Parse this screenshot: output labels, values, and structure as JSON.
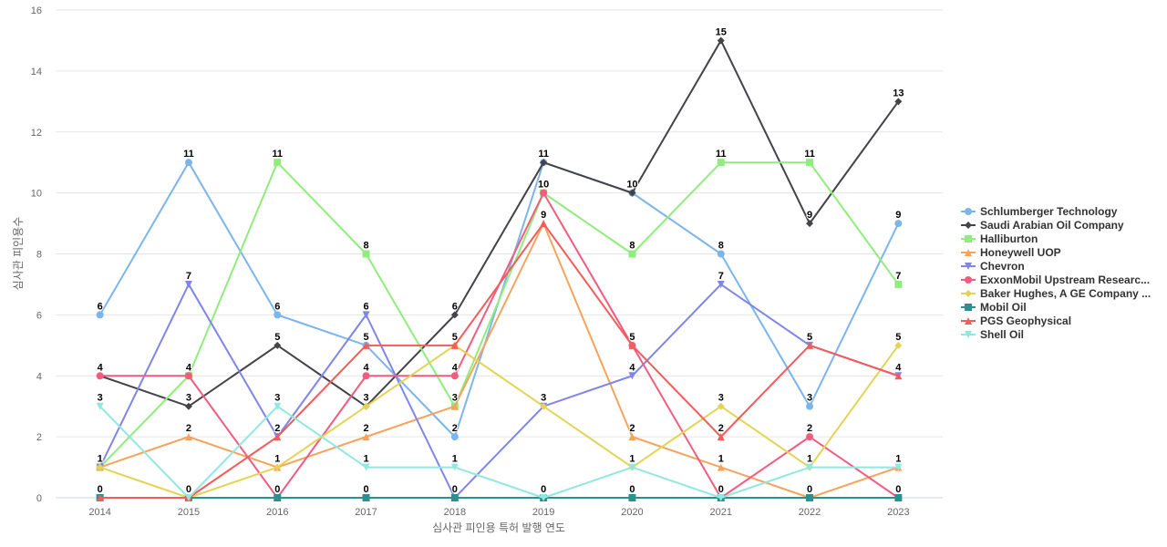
{
  "chart_data": {
    "type": "line",
    "xlabel": "심사관 피인용 특허 발행 연도",
    "ylabel": "심사관 피인용수",
    "x": [
      "2014",
      "2015",
      "2016",
      "2017",
      "2018",
      "2019",
      "2020",
      "2021",
      "2022",
      "2023"
    ],
    "ylim": [
      0,
      16
    ],
    "yticks": [
      0,
      2,
      4,
      6,
      8,
      10,
      12,
      14,
      16
    ],
    "grid": true,
    "legend_position": "right",
    "series": [
      {
        "name": "Schlumberger Technology",
        "color": "#7cb5ec",
        "marker": "circle",
        "values": [
          6,
          11,
          6,
          5,
          2,
          11,
          10,
          8,
          3,
          9
        ]
      },
      {
        "name": "Saudi Arabian Oil Company",
        "color": "#434348",
        "marker": "diamond",
        "values": [
          4,
          3,
          5,
          3,
          6,
          11,
          10,
          15,
          9,
          13
        ]
      },
      {
        "name": "Halliburton",
        "color": "#90ed7d",
        "marker": "square",
        "values": [
          1,
          4,
          11,
          8,
          3,
          10,
          8,
          11,
          11,
          7
        ]
      },
      {
        "name": "Honeywell UOP",
        "color": "#f7a35c",
        "marker": "triangle",
        "values": [
          1,
          2,
          1,
          2,
          3,
          9,
          2,
          1,
          0,
          1
        ]
      },
      {
        "name": "Chevron",
        "color": "#8085e9",
        "marker": "triangle-down",
        "values": [
          1,
          7,
          2,
          6,
          0,
          3,
          4,
          7,
          5,
          4
        ]
      },
      {
        "name": "ExxonMobil Upstream Researc...",
        "color": "#f15c80",
        "marker": "circle",
        "values": [
          4,
          4,
          0,
          4,
          4,
          10,
          5,
          0,
          2,
          0
        ]
      },
      {
        "name": "Baker Hughes, A GE Company ...",
        "color": "#e4d354",
        "marker": "diamond",
        "values": [
          1,
          0,
          1,
          3,
          5,
          3,
          1,
          3,
          1,
          5
        ]
      },
      {
        "name": "Mobil Oil",
        "color": "#2b908f",
        "marker": "square",
        "values": [
          0,
          0,
          0,
          0,
          0,
          0,
          0,
          0,
          0,
          0
        ]
      },
      {
        "name": "PGS Geophysical",
        "color": "#f45b5b",
        "marker": "triangle",
        "values": [
          0,
          0,
          2,
          5,
          5,
          9,
          5,
          2,
          5,
          4
        ]
      },
      {
        "name": "Shell Oil",
        "color": "#91e8e1",
        "marker": "triangle-down",
        "values": [
          3,
          0,
          3,
          1,
          1,
          0,
          1,
          0,
          1,
          1
        ]
      }
    ],
    "data_labels": [
      {
        "x": "2014",
        "series": "Schlumberger Technology",
        "value": 6
      },
      {
        "x": "2014",
        "series": "ExxonMobil Upstream Researc...",
        "value": 4
      },
      {
        "x": "2014",
        "series": "Shell Oil",
        "value": 3
      },
      {
        "x": "2014",
        "series": "Honeywell UOP",
        "value": 1
      },
      {
        "x": "2014",
        "series": "Mobil Oil",
        "value": 0
      },
      {
        "x": "2015",
        "series": "Schlumberger Technology",
        "value": 11
      },
      {
        "x": "2015",
        "series": "Chevron",
        "value": 7
      },
      {
        "x": "2015",
        "series": "Halliburton",
        "value": 4
      },
      {
        "x": "2015",
        "series": "Saudi Arabian Oil Company",
        "value": 3
      },
      {
        "x": "2015",
        "series": "Honeywell UOP",
        "value": 2
      },
      {
        "x": "2015",
        "series": "Mobil Oil",
        "value": 0
      },
      {
        "x": "2016",
        "series": "Halliburton",
        "value": 11
      },
      {
        "x": "2016",
        "series": "Schlumberger Technology",
        "value": 6
      },
      {
        "x": "2016",
        "series": "Saudi Arabian Oil Company",
        "value": 5
      },
      {
        "x": "2016",
        "series": "Shell Oil",
        "value": 3
      },
      {
        "x": "2016",
        "series": "Chevron",
        "value": 2
      },
      {
        "x": "2016",
        "series": "Honeywell UOP",
        "value": 1
      },
      {
        "x": "2016",
        "series": "Mobil Oil",
        "value": 0
      },
      {
        "x": "2017",
        "series": "Halliburton",
        "value": 8
      },
      {
        "x": "2017",
        "series": "Chevron",
        "value": 6
      },
      {
        "x": "2017",
        "series": "PGS Geophysical",
        "value": 5
      },
      {
        "x": "2017",
        "series": "ExxonMobil Upstream Researc...",
        "value": 4
      },
      {
        "x": "2017",
        "series": "Saudi Arabian Oil Company",
        "value": 3
      },
      {
        "x": "2017",
        "series": "Honeywell UOP",
        "value": 2
      },
      {
        "x": "2017",
        "series": "Shell Oil",
        "value": 1
      },
      {
        "x": "2017",
        "series": "Mobil Oil",
        "value": 0
      },
      {
        "x": "2018",
        "series": "Saudi Arabian Oil Company",
        "value": 6
      },
      {
        "x": "2018",
        "series": "PGS Geophysical",
        "value": 5
      },
      {
        "x": "2018",
        "series": "ExxonMobil Upstream Researc...",
        "value": 4
      },
      {
        "x": "2018",
        "series": "Halliburton",
        "value": 3
      },
      {
        "x": "2018",
        "series": "Schlumberger Technology",
        "value": 2
      },
      {
        "x": "2018",
        "series": "Shell Oil",
        "value": 1
      },
      {
        "x": "2018",
        "series": "Mobil Oil",
        "value": 0
      },
      {
        "x": "2019",
        "series": "Schlumberger Technology",
        "value": 11
      },
      {
        "x": "2019",
        "series": "Halliburton",
        "value": 10
      },
      {
        "x": "2019",
        "series": "PGS Geophysical",
        "value": 9
      },
      {
        "x": "2019",
        "series": "Chevron",
        "value": 3
      },
      {
        "x": "2019",
        "series": "Mobil Oil",
        "value": 0
      },
      {
        "x": "2020",
        "series": "Saudi Arabian Oil Company",
        "value": 10
      },
      {
        "x": "2020",
        "series": "Halliburton",
        "value": 8
      },
      {
        "x": "2020",
        "series": "PGS Geophysical",
        "value": 5
      },
      {
        "x": "2020",
        "series": "Chevron",
        "value": 4
      },
      {
        "x": "2020",
        "series": "Honeywell UOP",
        "value": 2
      },
      {
        "x": "2020",
        "series": "Shell Oil",
        "value": 1
      },
      {
        "x": "2020",
        "series": "Mobil Oil",
        "value": 0
      },
      {
        "x": "2021",
        "series": "Saudi Arabian Oil Company",
        "value": 15
      },
      {
        "x": "2021",
        "series": "Halliburton",
        "value": 11
      },
      {
        "x": "2021",
        "series": "Schlumberger Technology",
        "value": 8
      },
      {
        "x": "2021",
        "series": "Chevron",
        "value": 7
      },
      {
        "x": "2021",
        "series": "Baker Hughes, A GE Company ...",
        "value": 3
      },
      {
        "x": "2021",
        "series": "PGS Geophysical",
        "value": 2
      },
      {
        "x": "2021",
        "series": "Honeywell UOP",
        "value": 1
      },
      {
        "x": "2021",
        "series": "Mobil Oil",
        "value": 0
      },
      {
        "x": "2022",
        "series": "Halliburton",
        "value": 11
      },
      {
        "x": "2022",
        "series": "Saudi Arabian Oil Company",
        "value": 9
      },
      {
        "x": "2022",
        "series": "PGS Geophysical",
        "value": 5
      },
      {
        "x": "2022",
        "series": "Schlumberger Technology",
        "value": 3
      },
      {
        "x": "2022",
        "series": "ExxonMobil Upstream Researc...",
        "value": 2
      },
      {
        "x": "2022",
        "series": "Shell Oil",
        "value": 1
      },
      {
        "x": "2022",
        "series": "Mobil Oil",
        "value": 0
      },
      {
        "x": "2023",
        "series": "Saudi Arabian Oil Company",
        "value": 13
      },
      {
        "x": "2023",
        "series": "Schlumberger Technology",
        "value": 9
      },
      {
        "x": "2023",
        "series": "Halliburton",
        "value": 7
      },
      {
        "x": "2023",
        "series": "Baker Hughes, A GE Company ...",
        "value": 5
      },
      {
        "x": "2023",
        "series": "PGS Geophysical",
        "value": 4
      },
      {
        "x": "2023",
        "series": "Shell Oil",
        "value": 1
      },
      {
        "x": "2023",
        "series": "Mobil Oil",
        "value": 0
      }
    ]
  }
}
